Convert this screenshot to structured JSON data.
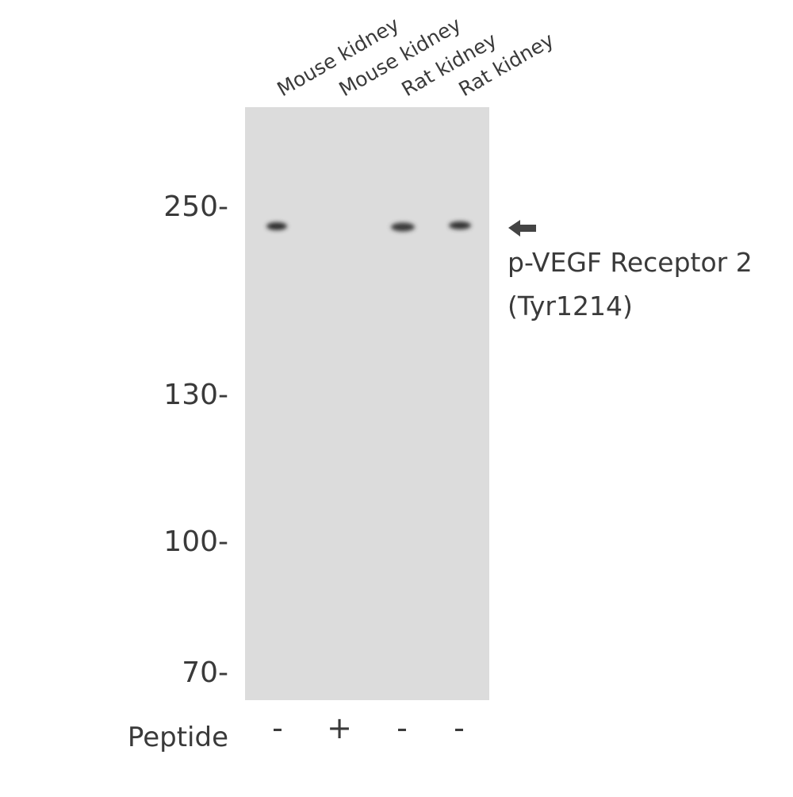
{
  "lanes": [
    {
      "label": "Mouse kidney",
      "peptide": "-"
    },
    {
      "label": "Mouse kidney",
      "peptide": "+"
    },
    {
      "label": "Rat kidney",
      "peptide": "-"
    },
    {
      "label": "Rat kidney",
      "peptide": "-"
    }
  ],
  "markers": [
    "250-",
    "130-",
    "100-",
    "70-"
  ],
  "peptide_label": "Peptide",
  "target": {
    "lines": [
      "p-VEGF Receptor 2",
      "(Tyr1214)"
    ]
  }
}
